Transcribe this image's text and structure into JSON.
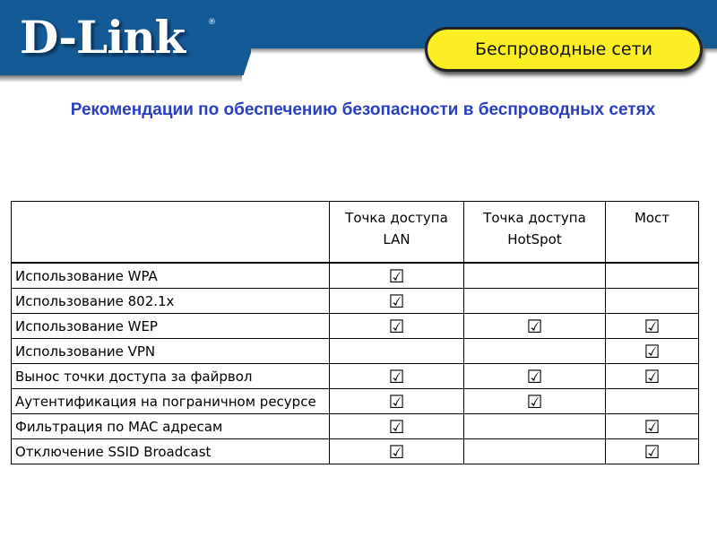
{
  "header": {
    "logo": "D-Link",
    "badge": "Беспроводные сети"
  },
  "title": "Рекомендации по обеспечению безопасности в беспроводных сетях",
  "table": {
    "columns": [
      "",
      "Точка доступа LAN",
      "Точка доступа HotSpot",
      "Мост"
    ],
    "rows": [
      {
        "label": "Использование WPA",
        "checks": [
          true,
          false,
          false
        ]
      },
      {
        "label": "Использование 802.1x",
        "checks": [
          true,
          false,
          false
        ]
      },
      {
        "label": "Использование WEP",
        "checks": [
          true,
          true,
          true
        ]
      },
      {
        "label": "Использование VPN",
        "checks": [
          false,
          false,
          true
        ]
      },
      {
        "label": "Вынос точки доступа за файрвол",
        "checks": [
          true,
          true,
          true
        ]
      },
      {
        "label": "Аутентификация на пограничном ресурсе",
        "checks": [
          true,
          true,
          false
        ]
      },
      {
        "label": "Фильтрация по MAC адресам",
        "checks": [
          true,
          false,
          true
        ]
      },
      {
        "label": "Отключение SSID Broadcast",
        "checks": [
          true,
          false,
          true
        ]
      }
    ]
  }
}
